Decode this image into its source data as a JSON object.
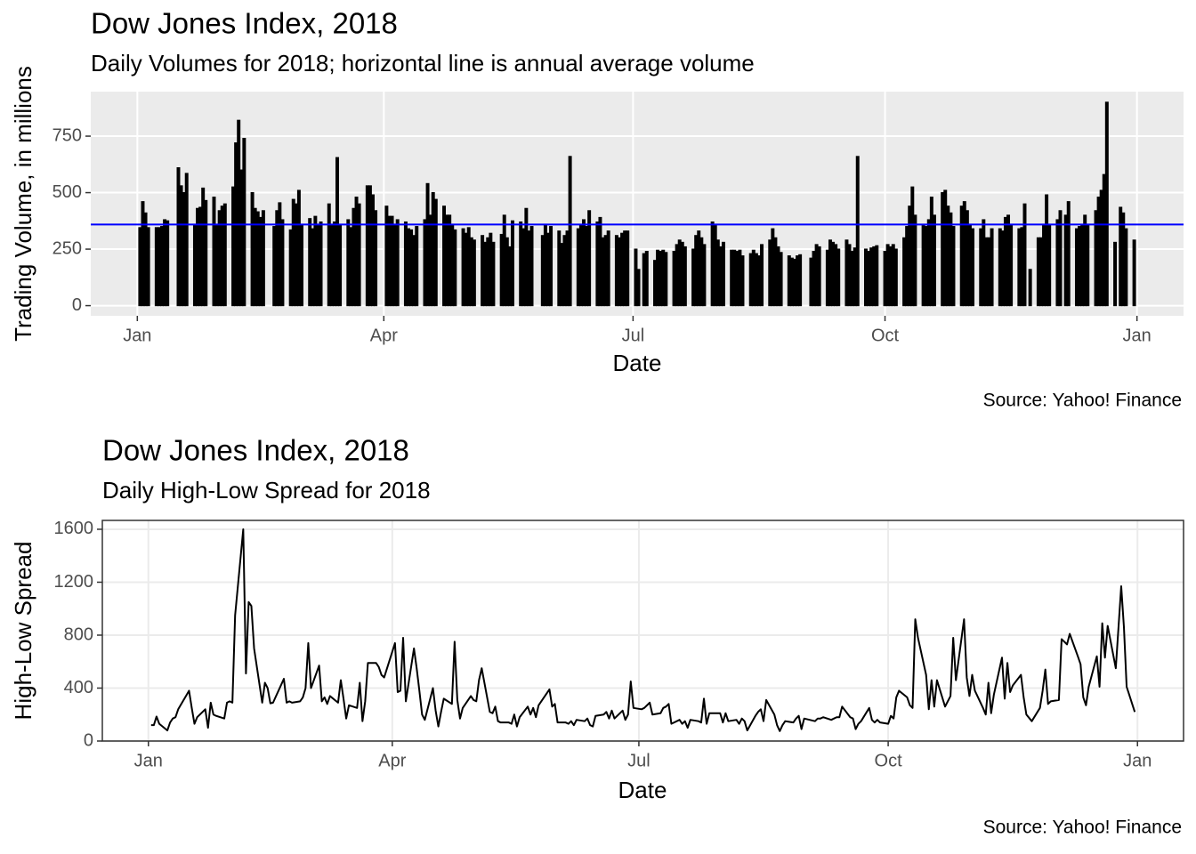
{
  "chart_data": [
    {
      "type": "bar",
      "title": "Dow Jones Index, 2018",
      "subtitle": "Daily Volumes for 2018; horizontal line is annual average volume",
      "x_label": "Date",
      "y_label": "Trading Volume, in millions",
      "caption": "Source: Yahoo! Finance",
      "color": "#000000",
      "average": 359,
      "average_color": "#0000ff",
      "grid": true,
      "xlim": [
        -17,
        382
      ],
      "ylim": [
        -45,
        947
      ],
      "xticks": [
        {
          "value": 0,
          "label": "Jan"
        },
        {
          "value": 90,
          "label": "Apr"
        },
        {
          "value": 181,
          "label": "Jul"
        },
        {
          "value": 273,
          "label": "Oct"
        },
        {
          "value": 365,
          "label": "Jan"
        }
      ],
      "yticks": [
        0,
        250,
        500,
        750
      ],
      "x": [
        1,
        2,
        3,
        4,
        7,
        8,
        9,
        10,
        11,
        15,
        16,
        17,
        18,
        21,
        22,
        23,
        24,
        25,
        28,
        29,
        30,
        31,
        32,
        35,
        36,
        37,
        38,
        39,
        42,
        43,
        44,
        45,
        46,
        50,
        51,
        52,
        53,
        56,
        57,
        58,
        59,
        60,
        63,
        64,
        65,
        66,
        67,
        70,
        71,
        72,
        73,
        74,
        77,
        78,
        79,
        80,
        81,
        84,
        85,
        86,
        87,
        91,
        92,
        93,
        94,
        95,
        98,
        99,
        100,
        101,
        102,
        105,
        106,
        107,
        108,
        109,
        112,
        113,
        114,
        115,
        116,
        119,
        120,
        121,
        122,
        123,
        126,
        127,
        128,
        129,
        130,
        133,
        134,
        135,
        136,
        137,
        140,
        141,
        142,
        143,
        144,
        148,
        149,
        150,
        151,
        154,
        155,
        156,
        157,
        158,
        161,
        162,
        163,
        164,
        165,
        168,
        169,
        170,
        171,
        172,
        175,
        176,
        177,
        178,
        179,
        182,
        183,
        185,
        186,
        189,
        190,
        191,
        192,
        193,
        196,
        197,
        198,
        199,
        200,
        203,
        204,
        205,
        206,
        207,
        210,
        211,
        212,
        213,
        214,
        217,
        218,
        219,
        220,
        221,
        224,
        225,
        226,
        227,
        228,
        231,
        232,
        233,
        234,
        235,
        238,
        239,
        240,
        241,
        242,
        246,
        247,
        248,
        249,
        252,
        253,
        254,
        255,
        256,
        259,
        260,
        261,
        262,
        263,
        266,
        267,
        268,
        269,
        270,
        273,
        274,
        275,
        276,
        277,
        280,
        281,
        282,
        283,
        284,
        287,
        288,
        289,
        290,
        291,
        294,
        295,
        296,
        297,
        298,
        301,
        302,
        303,
        304,
        305,
        308,
        309,
        310,
        311,
        312,
        315,
        316,
        317,
        318,
        319,
        322,
        323,
        324,
        326,
        329,
        330,
        331,
        332,
        333,
        336,
        337,
        339,
        340,
        343,
        344,
        345,
        346,
        347,
        350,
        351,
        352,
        353,
        354,
        357,
        359,
        360,
        361,
        364
      ],
      "values": [
        345,
        460,
        410,
        345,
        345,
        345,
        350,
        380,
        375,
        610,
        530,
        500,
        585,
        360,
        430,
        435,
        520,
        465,
        480,
        360,
        420,
        440,
        450,
        525,
        720,
        820,
        600,
        740,
        500,
        430,
        415,
        390,
        420,
        350,
        420,
        455,
        380,
        335,
        470,
        450,
        510,
        360,
        385,
        340,
        395,
        360,
        370,
        450,
        355,
        370,
        655,
        360,
        380,
        345,
        430,
        480,
        450,
        530,
        530,
        490,
        420,
        440,
        395,
        395,
        360,
        380,
        370,
        340,
        335,
        310,
        350,
        380,
        540,
        400,
        500,
        470,
        440,
        400,
        400,
        355,
        335,
        340,
        320,
        345,
        300,
        290,
        310,
        280,
        300,
        320,
        280,
        315,
        400,
        300,
        260,
        375,
        370,
        340,
        430,
        330,
        350,
        310,
        360,
        320,
        350,
        330,
        275,
        310,
        330,
        660,
        340,
        360,
        380,
        350,
        420,
        370,
        390,
        300,
        310,
        330,
        310,
        300,
        320,
        330,
        330,
        250,
        160,
        230,
        240,
        200,
        245,
        240,
        245,
        235,
        240,
        270,
        290,
        280,
        260,
        250,
        310,
        330,
        300,
        270,
        370,
        360,
        290,
        260,
        280,
        245,
        245,
        240,
        245,
        220,
        230,
        245,
        230,
        220,
        270,
        290,
        340,
        300,
        260,
        235,
        220,
        210,
        205,
        220,
        225,
        210,
        240,
        270,
        260,
        245,
        290,
        280,
        270,
        250,
        290,
        270,
        240,
        255,
        660,
        250,
        240,
        255,
        260,
        265,
        240,
        270,
        260,
        270,
        250,
        300,
        350,
        440,
        525,
        400,
        360,
        350,
        380,
        480,
        400,
        500,
        510,
        440,
        410,
        350,
        440,
        460,
        420,
        360,
        340,
        340,
        380,
        300,
        300,
        340,
        340,
        330,
        390,
        400,
        360,
        340,
        345,
        450,
        160,
        300,
        300,
        360,
        490,
        360,
        380,
        420,
        400,
        460,
        340,
        350,
        360,
        400,
        360,
        420,
        480,
        510,
        580,
        900,
        280,
        435,
        410,
        340,
        290
      ]
    },
    {
      "type": "line",
      "title": "Dow Jones Index, 2018",
      "subtitle": "Daily High-Low Spread for 2018",
      "x_label": "Date",
      "y_label": "High-Low Spread",
      "caption": "Source: Yahoo! Finance",
      "color": "#000000",
      "grid": true,
      "xlim": [
        -17,
        382
      ],
      "ylim": [
        0,
        1667
      ],
      "xticks": [
        {
          "value": 0,
          "label": "Jan"
        },
        {
          "value": 90,
          "label": "Apr"
        },
        {
          "value": 181,
          "label": "Jul"
        },
        {
          "value": 273,
          "label": "Oct"
        },
        {
          "value": 365,
          "label": "Jan"
        }
      ],
      "yticks": [
        0,
        400,
        800,
        1200,
        1600
      ],
      "x": [
        1,
        2,
        3,
        4,
        7,
        8,
        9,
        10,
        11,
        15,
        16,
        17,
        18,
        21,
        22,
        23,
        24,
        25,
        28,
        29,
        30,
        31,
        32,
        35,
        36,
        37,
        38,
        39,
        42,
        43,
        44,
        45,
        46,
        50,
        51,
        52,
        53,
        56,
        57,
        58,
        59,
        60,
        63,
        64,
        65,
        66,
        67,
        70,
        71,
        72,
        73,
        74,
        77,
        78,
        79,
        80,
        81,
        84,
        85,
        86,
        87,
        91,
        92,
        93,
        94,
        95,
        98,
        99,
        100,
        101,
        102,
        105,
        106,
        107,
        108,
        109,
        112,
        113,
        114,
        115,
        116,
        119,
        120,
        121,
        122,
        123,
        126,
        127,
        128,
        129,
        130,
        133,
        134,
        135,
        136,
        137,
        140,
        141,
        142,
        143,
        144,
        148,
        149,
        150,
        151,
        154,
        155,
        156,
        157,
        158,
        161,
        162,
        163,
        164,
        165,
        168,
        169,
        170,
        171,
        172,
        175,
        176,
        177,
        178,
        179,
        182,
        183,
        185,
        186,
        189,
        190,
        191,
        192,
        193,
        196,
        197,
        198,
        199,
        200,
        203,
        204,
        205,
        206,
        207,
        210,
        211,
        212,
        213,
        214,
        217,
        218,
        219,
        220,
        221,
        224,
        225,
        226,
        227,
        228,
        231,
        232,
        233,
        234,
        235,
        238,
        239,
        240,
        241,
        242,
        246,
        247,
        248,
        249,
        252,
        253,
        254,
        255,
        256,
        259,
        260,
        261,
        262,
        263,
        266,
        267,
        268,
        269,
        270,
        273,
        274,
        275,
        276,
        277,
        280,
        281,
        282,
        283,
        284,
        287,
        288,
        289,
        290,
        291,
        294,
        295,
        296,
        297,
        298,
        301,
        302,
        303,
        304,
        305,
        308,
        309,
        310,
        311,
        312,
        315,
        316,
        317,
        318,
        319,
        322,
        323,
        324,
        326,
        329,
        330,
        331,
        332,
        333,
        336,
        337,
        339,
        340,
        343,
        344,
        345,
        346,
        347,
        350,
        351,
        352,
        353,
        354,
        357,
        359,
        360,
        361,
        364
      ],
      "values": [
        120,
        120,
        185,
        130,
        80,
        140,
        170,
        180,
        240,
        380,
        250,
        130,
        180,
        240,
        100,
        290,
        200,
        190,
        170,
        290,
        300,
        290,
        950,
        1600,
        510,
        1050,
        1020,
        700,
        290,
        440,
        400,
        285,
        290,
        470,
        290,
        300,
        290,
        300,
        330,
        400,
        740,
        400,
        570,
        300,
        330,
        280,
        340,
        290,
        460,
        320,
        170,
        270,
        250,
        440,
        150,
        300,
        590,
        590,
        560,
        500,
        480,
        740,
        370,
        380,
        780,
        300,
        700,
        550,
        380,
        200,
        160,
        400,
        230,
        110,
        220,
        320,
        280,
        750,
        310,
        170,
        250,
        340,
        310,
        300,
        460,
        550,
        220,
        210,
        260,
        150,
        140,
        140,
        130,
        200,
        110,
        180,
        260,
        200,
        250,
        180,
        270,
        390,
        260,
        280,
        140,
        140,
        130,
        150,
        120,
        160,
        150,
        170,
        120,
        110,
        190,
        200,
        220,
        170,
        230,
        170,
        230,
        160,
        200,
        450,
        250,
        240,
        250,
        290,
        200,
        210,
        250,
        260,
        280,
        130,
        160,
        130,
        150,
        100,
        160,
        150,
        140,
        320,
        130,
        210,
        210,
        210,
        140,
        210,
        150,
        160,
        130,
        170,
        150,
        80,
        190,
        220,
        240,
        150,
        310,
        200,
        120,
        75,
        120,
        150,
        140,
        170,
        190,
        90,
        170,
        150,
        170,
        170,
        180,
        160,
        170,
        180,
        180,
        260,
        180,
        170,
        90,
        130,
        150,
        250,
        160,
        140,
        160,
        140,
        130,
        190,
        170,
        330,
        380,
        330,
        270,
        250,
        920,
        780,
        500,
        240,
        460,
        260,
        460,
        260,
        300,
        340,
        780,
        460,
        920,
        480,
        340,
        500,
        380,
        250,
        200,
        440,
        210,
        350,
        630,
        320,
        590,
        370,
        420,
        500,
        330,
        200,
        150,
        250,
        380,
        540,
        280,
        300,
        310,
        770,
        730,
        810,
        640,
        580,
        330,
        270,
        410,
        640,
        410,
        890,
        630,
        870,
        550,
        1170,
        860,
        410,
        220
      ]
    }
  ]
}
